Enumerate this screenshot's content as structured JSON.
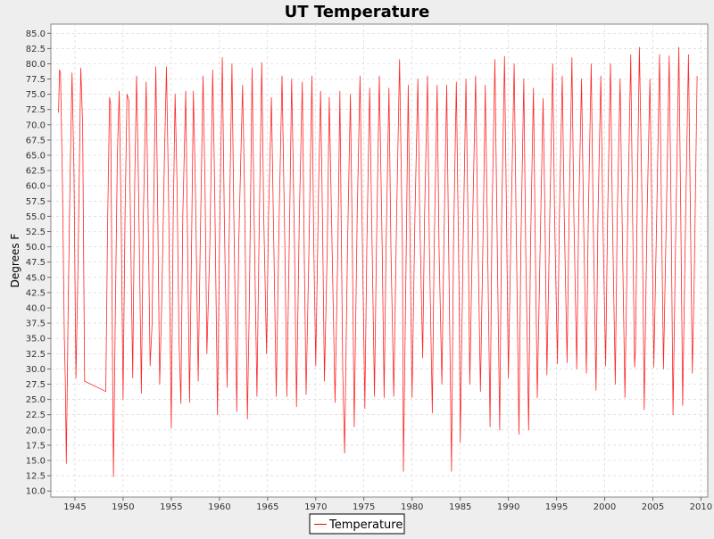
{
  "chart_data": {
    "type": "line",
    "title": "UT Temperature",
    "xlabel": "",
    "ylabel": "Degrees F",
    "xlim": [
      1942.5,
      2010.7
    ],
    "ylim": [
      9.0,
      86.5
    ],
    "xticks": [
      1945,
      1950,
      1955,
      1960,
      1965,
      1970,
      1975,
      1980,
      1985,
      1990,
      1995,
      2000,
      2005,
      2010
    ],
    "yticks": [
      10.0,
      12.5,
      15.0,
      17.5,
      20.0,
      22.5,
      25.0,
      27.5,
      30.0,
      32.5,
      35.0,
      37.5,
      40.0,
      42.5,
      45.0,
      47.5,
      50.0,
      52.5,
      55.0,
      57.5,
      60.0,
      62.5,
      65.0,
      67.5,
      70.0,
      72.5,
      75.0,
      77.5,
      80.0,
      82.5,
      85.0
    ],
    "grid": true,
    "legend_position": "bottom",
    "colors": {
      "series": "#ff0000",
      "plot_bg": "#ffffff",
      "page_bg": "#eeeeee",
      "grid": "#d0d0d0"
    },
    "series": [
      {
        "name": "Temperature",
        "points": [
          [
            1943.3,
            72.0
          ],
          [
            1943.4,
            79.0
          ],
          [
            1943.5,
            78.5
          ],
          [
            1943.7,
            60.0
          ],
          [
            1943.9,
            35.0
          ],
          [
            1944.0,
            28.0
          ],
          [
            1944.1,
            14.5
          ],
          [
            1944.3,
            40.0
          ],
          [
            1944.5,
            62.0
          ],
          [
            1944.7,
            78.5
          ],
          [
            1944.9,
            62.0
          ],
          [
            1945.1,
            28.5
          ],
          [
            1945.3,
            45.0
          ],
          [
            1945.6,
            79.3
          ],
          [
            1945.8,
            70.0
          ],
          [
            1946.0,
            28.0
          ],
          [
            1948.2,
            26.3
          ],
          [
            1948.4,
            55.0
          ],
          [
            1948.6,
            74.5
          ],
          [
            1948.7,
            73.5
          ],
          [
            1949.0,
            12.3
          ],
          [
            1949.2,
            40.0
          ],
          [
            1949.4,
            65.0
          ],
          [
            1949.6,
            75.5
          ],
          [
            1949.8,
            54.0
          ],
          [
            1950.0,
            25.0
          ],
          [
            1950.2,
            55.0
          ],
          [
            1950.4,
            75.0
          ],
          [
            1950.6,
            74.0
          ],
          [
            1950.8,
            50.0
          ],
          [
            1951.0,
            28.5
          ],
          [
            1951.2,
            60.0
          ],
          [
            1951.4,
            78.0
          ],
          [
            1951.6,
            60.0
          ],
          [
            1951.9,
            26.0
          ],
          [
            1952.1,
            55.0
          ],
          [
            1952.4,
            77.0
          ],
          [
            1952.6,
            55.0
          ],
          [
            1952.8,
            30.5
          ],
          [
            1953.0,
            37.0
          ],
          [
            1953.2,
            60.0
          ],
          [
            1953.4,
            79.5
          ],
          [
            1953.6,
            55.0
          ],
          [
            1953.8,
            27.5
          ],
          [
            1954.0,
            40.0
          ],
          [
            1954.3,
            65.0
          ],
          [
            1954.5,
            79.5
          ],
          [
            1954.7,
            60.0
          ],
          [
            1955.0,
            20.3
          ],
          [
            1955.2,
            55.0
          ],
          [
            1955.4,
            75.0
          ],
          [
            1955.6,
            60.0
          ],
          [
            1955.8,
            35.0
          ],
          [
            1956.0,
            24.3
          ],
          [
            1956.2,
            55.0
          ],
          [
            1956.5,
            75.5
          ],
          [
            1956.7,
            50.0
          ],
          [
            1956.9,
            24.5
          ],
          [
            1957.1,
            50.0
          ],
          [
            1957.3,
            75.5
          ],
          [
            1957.5,
            60.0
          ],
          [
            1957.8,
            28.0
          ],
          [
            1958.0,
            50.0
          ],
          [
            1958.3,
            78.0
          ],
          [
            1958.5,
            60.0
          ],
          [
            1958.7,
            32.5
          ],
          [
            1959.0,
            50.0
          ],
          [
            1959.3,
            79.0
          ],
          [
            1959.5,
            60.0
          ],
          [
            1959.8,
            22.5
          ],
          [
            1960.0,
            50.0
          ],
          [
            1960.3,
            81.0
          ],
          [
            1960.5,
            55.0
          ],
          [
            1960.8,
            27.0
          ],
          [
            1961.0,
            50.0
          ],
          [
            1961.3,
            80.0
          ],
          [
            1961.5,
            55.0
          ],
          [
            1961.8,
            23.0
          ],
          [
            1962.0,
            50.0
          ],
          [
            1962.4,
            76.5
          ],
          [
            1962.6,
            60.0
          ],
          [
            1962.9,
            21.8
          ],
          [
            1963.1,
            40.0
          ],
          [
            1963.4,
            79.3
          ],
          [
            1963.6,
            55.0
          ],
          [
            1963.9,
            25.5
          ],
          [
            1964.1,
            50.0
          ],
          [
            1964.4,
            80.2
          ],
          [
            1964.6,
            55.0
          ],
          [
            1964.9,
            32.5
          ],
          [
            1965.1,
            55.0
          ],
          [
            1965.4,
            74.5
          ],
          [
            1965.7,
            45.0
          ],
          [
            1965.9,
            25.5
          ],
          [
            1966.2,
            55.0
          ],
          [
            1966.5,
            78.0
          ],
          [
            1966.8,
            50.0
          ],
          [
            1967.0,
            25.5
          ],
          [
            1967.3,
            55.0
          ],
          [
            1967.5,
            77.5
          ],
          [
            1967.8,
            50.0
          ],
          [
            1968.0,
            23.8
          ],
          [
            1968.3,
            55.0
          ],
          [
            1968.6,
            77.0
          ],
          [
            1968.8,
            50.0
          ],
          [
            1969.0,
            25.8
          ],
          [
            1969.3,
            50.0
          ],
          [
            1969.6,
            78.0
          ],
          [
            1969.8,
            50.0
          ],
          [
            1970.0,
            30.5
          ],
          [
            1970.3,
            60.0
          ],
          [
            1970.5,
            75.5
          ],
          [
            1970.7,
            55.0
          ],
          [
            1970.9,
            28.0
          ],
          [
            1971.2,
            50.0
          ],
          [
            1971.4,
            74.5
          ],
          [
            1971.7,
            50.0
          ],
          [
            1972.0,
            24.5
          ],
          [
            1972.3,
            50.0
          ],
          [
            1972.5,
            75.5
          ],
          [
            1972.8,
            30.0
          ],
          [
            1973.0,
            16.2
          ],
          [
            1973.3,
            50.0
          ],
          [
            1973.6,
            75.0
          ],
          [
            1973.8,
            50.0
          ],
          [
            1974.0,
            20.5
          ],
          [
            1974.3,
            55.0
          ],
          [
            1974.6,
            78.0
          ],
          [
            1974.8,
            55.0
          ],
          [
            1975.1,
            23.5
          ],
          [
            1975.3,
            50.0
          ],
          [
            1975.6,
            76.0
          ],
          [
            1975.8,
            55.0
          ],
          [
            1976.1,
            25.5
          ],
          [
            1976.3,
            50.0
          ],
          [
            1976.6,
            78.0
          ],
          [
            1976.9,
            50.0
          ],
          [
            1977.1,
            25.3
          ],
          [
            1977.3,
            50.0
          ],
          [
            1977.6,
            76.0
          ],
          [
            1977.8,
            50.0
          ],
          [
            1978.1,
            25.5
          ],
          [
            1978.4,
            55.0
          ],
          [
            1978.7,
            80.7
          ],
          [
            1979.0,
            50.0
          ],
          [
            1979.1,
            13.2
          ],
          [
            1979.4,
            50.0
          ],
          [
            1979.6,
            76.5
          ],
          [
            1979.8,
            50.0
          ],
          [
            1980.0,
            25.3
          ],
          [
            1980.3,
            55.0
          ],
          [
            1980.6,
            77.5
          ],
          [
            1980.8,
            55.0
          ],
          [
            1981.1,
            31.8
          ],
          [
            1981.3,
            55.0
          ],
          [
            1981.6,
            78.0
          ],
          [
            1981.8,
            50.0
          ],
          [
            1982.1,
            22.8
          ],
          [
            1982.3,
            50.0
          ],
          [
            1982.6,
            76.5
          ],
          [
            1982.8,
            50.0
          ],
          [
            1983.1,
            27.5
          ],
          [
            1983.3,
            50.0
          ],
          [
            1983.6,
            76.5
          ],
          [
            1983.8,
            50.0
          ],
          [
            1984.1,
            13.2
          ],
          [
            1984.3,
            50.0
          ],
          [
            1984.6,
            77.0
          ],
          [
            1984.9,
            40.0
          ],
          [
            1985.0,
            18.0
          ],
          [
            1985.3,
            50.0
          ],
          [
            1985.6,
            77.5
          ],
          [
            1985.8,
            55.0
          ],
          [
            1986.0,
            27.5
          ],
          [
            1986.3,
            55.0
          ],
          [
            1986.6,
            78.0
          ],
          [
            1986.8,
            55.0
          ],
          [
            1987.1,
            26.3
          ],
          [
            1987.4,
            55.0
          ],
          [
            1987.6,
            76.5
          ],
          [
            1987.8,
            55.0
          ],
          [
            1988.1,
            20.5
          ],
          [
            1988.3,
            55.0
          ],
          [
            1988.6,
            80.7
          ],
          [
            1988.8,
            55.0
          ],
          [
            1989.1,
            20.0
          ],
          [
            1989.3,
            55.0
          ],
          [
            1989.6,
            81.2
          ],
          [
            1989.8,
            55.0
          ],
          [
            1990.0,
            28.5
          ],
          [
            1990.3,
            55.0
          ],
          [
            1990.6,
            80.0
          ],
          [
            1990.8,
            55.0
          ],
          [
            1991.1,
            19.3
          ],
          [
            1991.3,
            50.0
          ],
          [
            1991.6,
            77.5
          ],
          [
            1991.8,
            50.0
          ],
          [
            1992.1,
            20.0
          ],
          [
            1992.3,
            50.0
          ],
          [
            1992.6,
            76.0
          ],
          [
            1992.8,
            50.0
          ],
          [
            1993.0,
            25.3
          ],
          [
            1993.3,
            50.0
          ],
          [
            1993.6,
            74.3
          ],
          [
            1993.8,
            55.0
          ],
          [
            1994.0,
            29.0
          ],
          [
            1994.3,
            55.0
          ],
          [
            1994.6,
            80.0
          ],
          [
            1994.8,
            55.0
          ],
          [
            1995.1,
            30.8
          ],
          [
            1995.3,
            55.0
          ],
          [
            1995.6,
            78.0
          ],
          [
            1995.8,
            55.0
          ],
          [
            1996.1,
            31.0
          ],
          [
            1996.3,
            55.0
          ],
          [
            1996.6,
            81.0
          ],
          [
            1996.8,
            55.0
          ],
          [
            1997.1,
            30.0
          ],
          [
            1997.3,
            55.0
          ],
          [
            1997.6,
            77.5
          ],
          [
            1997.8,
            55.0
          ],
          [
            1998.1,
            29.3
          ],
          [
            1998.3,
            55.0
          ],
          [
            1998.6,
            80.0
          ],
          [
            1998.8,
            55.0
          ],
          [
            1999.1,
            26.5
          ],
          [
            1999.3,
            55.0
          ],
          [
            1999.6,
            78.0
          ],
          [
            1999.8,
            55.0
          ],
          [
            2000.1,
            30.5
          ],
          [
            2000.3,
            55.0
          ],
          [
            2000.6,
            80.0
          ],
          [
            2000.8,
            55.0
          ],
          [
            2001.1,
            27.5
          ],
          [
            2001.3,
            55.0
          ],
          [
            2001.6,
            77.5
          ],
          [
            2001.8,
            55.0
          ],
          [
            2002.1,
            25.3
          ],
          [
            2002.4,
            55.0
          ],
          [
            2002.7,
            81.5
          ],
          [
            2002.9,
            55.0
          ],
          [
            2003.1,
            30.3
          ],
          [
            2003.2,
            33.5
          ],
          [
            2003.4,
            60.0
          ],
          [
            2003.6,
            82.7
          ],
          [
            2003.9,
            55.0
          ],
          [
            2004.1,
            23.3
          ],
          [
            2004.4,
            55.0
          ],
          [
            2004.7,
            77.5
          ],
          [
            2004.9,
            55.0
          ],
          [
            2005.1,
            30.3
          ],
          [
            2005.4,
            55.0
          ],
          [
            2005.7,
            81.5
          ],
          [
            2005.9,
            55.0
          ],
          [
            2006.1,
            30.0
          ],
          [
            2006.4,
            55.0
          ],
          [
            2006.7,
            81.3
          ],
          [
            2006.9,
            55.0
          ],
          [
            2007.1,
            22.5
          ],
          [
            2007.4,
            55.0
          ],
          [
            2007.7,
            82.7
          ],
          [
            2007.9,
            55.0
          ],
          [
            2008.1,
            24.0
          ],
          [
            2008.4,
            55.0
          ],
          [
            2008.7,
            81.5
          ],
          [
            2008.9,
            55.0
          ],
          [
            2009.1,
            29.3
          ],
          [
            2009.3,
            45.0
          ],
          [
            2009.6,
            78.0
          ]
        ]
      }
    ]
  }
}
